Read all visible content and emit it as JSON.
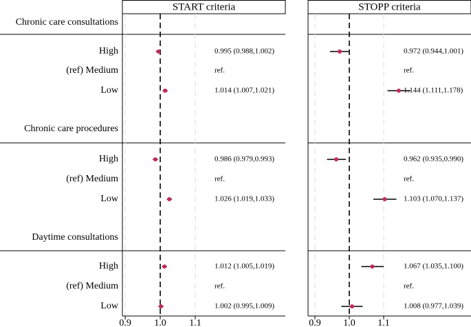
{
  "chart_data": {
    "type": "forest",
    "groups": [
      {
        "name": "Chronic care consultations",
        "categories": [
          "High",
          "(ref) Medium",
          "Low"
        ]
      },
      {
        "name": "Chronic care procedures",
        "categories": [
          "High",
          "(ref) Medium",
          "Low"
        ]
      },
      {
        "name": "Daytime consultations",
        "categories": [
          "High",
          "(ref) Medium",
          "Low"
        ]
      }
    ],
    "marker_color": "#c8285a",
    "grid": true,
    "panels": [
      {
        "title": "START criteria",
        "values": [
          0.995,
          null,
          1.014,
          0.986,
          null,
          1.026,
          1.012,
          null,
          1.002
        ],
        "lower": [
          0.988,
          null,
          1.007,
          0.979,
          null,
          1.019,
          1.005,
          null,
          0.995
        ],
        "upper": [
          1.002,
          null,
          1.021,
          0.993,
          null,
          1.033,
          1.019,
          null,
          1.009
        ],
        "value_labels": [
          "0.995 (0.988,1.002)",
          "ref.",
          "1.014 (1.007,1.021)",
          "0.986 (0.979,0.993)",
          "ref.",
          "1.026 (1.019,1.033)",
          "1.012 (1.005,1.019)",
          "ref.",
          "1.002 (0.995,1.009)"
        ],
        "xlim": [
          0.892,
          1.357
        ],
        "xticks": [
          0.9,
          {
            "value": 1,
            "label": "1.0"
          },
          1.1
        ]
      },
      {
        "title": "STOPP criteria",
        "values": [
          0.972,
          null,
          1.144,
          0.962,
          null,
          1.103,
          1.067,
          null,
          1.008
        ],
        "lower": [
          0.944,
          null,
          1.111,
          0.935,
          null,
          1.07,
          1.035,
          null,
          0.977
        ],
        "upper": [
          1.001,
          null,
          1.178,
          0.99,
          null,
          1.137,
          1.1,
          null,
          1.039
        ],
        "value_labels": [
          "0.972 (0.944,1.001)",
          "ref.",
          "1.144 (1.111,1.178)",
          "0.962 (0.935,0.990)",
          "ref.",
          "1.103 (1.070,1.137)",
          "1.067 (1.035,1.100)",
          "ref.",
          "1.008 (0.977,1.039)"
        ],
        "xlim": [
          0.88,
          1.354
        ],
        "xticks": [
          0.9,
          {
            "value": 1,
            "label": "1.0"
          },
          1.1
        ]
      }
    ]
  }
}
